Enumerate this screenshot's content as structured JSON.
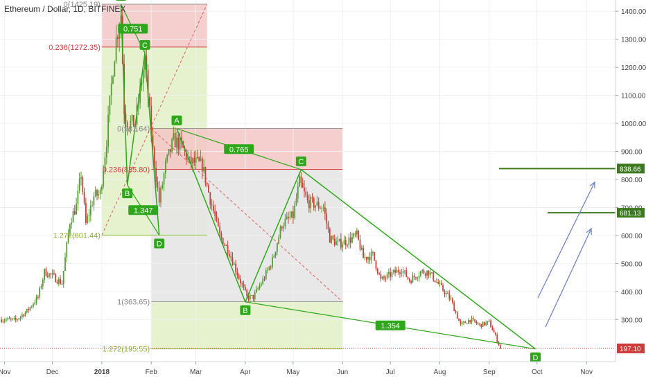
{
  "header": {
    "title": "Ethereum / Dollar, 1D, BITFINEX"
  },
  "colors": {
    "up": "#5a9a3a",
    "down": "#c8423a",
    "pattern": "#2ea81a",
    "fib_fill_red": "#f3c6c6",
    "fib_fill_green": "#e2f0c6",
    "fib_fill_gray": "#e6e6e6",
    "target_line": "#3d7a1f",
    "arrow": "#6f85c8",
    "price_line": "#d13a3a"
  },
  "chart_data": {
    "type": "candlestick",
    "title": "Ethereum / Dollar, 1D, BITFINEX",
    "x_ticks": [
      "Nov",
      "Dec",
      "2018",
      "Feb",
      "Mar",
      "Apr",
      "May",
      "Jun",
      "Jul",
      "Aug",
      "Sep",
      "Oct",
      "Nov"
    ],
    "x_tick_dates": [
      "2017-11-01",
      "2017-12-01",
      "2018-01-01",
      "2018-02-01",
      "2018-03-01",
      "2018-04-01",
      "2018-05-01",
      "2018-06-01",
      "2018-07-01",
      "2018-08-01",
      "2018-09-01",
      "2018-10-01",
      "2018-11-01"
    ],
    "y_ticks": [
      300,
      400,
      500,
      600,
      700,
      800,
      900,
      1000,
      1100,
      1200,
      1300,
      1400
    ],
    "y_range": [
      150,
      1440
    ],
    "price_path": [
      [
        "2017-10-30",
        300
      ],
      [
        "2017-11-08",
        298
      ],
      [
        "2017-11-15",
        330
      ],
      [
        "2017-11-22",
        380
      ],
      [
        "2017-11-26",
        470
      ],
      [
        "2017-12-01",
        455
      ],
      [
        "2017-12-07",
        430
      ],
      [
        "2017-12-12",
        650
      ],
      [
        "2017-12-16",
        705
      ],
      [
        "2017-12-19",
        820
      ],
      [
        "2017-12-22",
        640
      ],
      [
        "2017-12-27",
        740
      ],
      [
        "2017-12-31",
        750
      ],
      [
        "2018-01-04",
        940
      ],
      [
        "2018-01-08",
        1200
      ],
      [
        "2018-01-10",
        1300
      ],
      [
        "2018-01-13",
        1390
      ],
      [
        "2018-01-15",
        1050
      ],
      [
        "2018-01-17",
        1000
      ],
      [
        "2018-01-22",
        1000
      ],
      [
        "2018-01-28",
        1230
      ],
      [
        "2018-02-02",
        900
      ],
      [
        "2018-02-06",
        720
      ],
      [
        "2018-02-10",
        850
      ],
      [
        "2018-02-15",
        940
      ],
      [
        "2018-02-20",
        920
      ],
      [
        "2018-02-25",
        860
      ],
      [
        "2018-03-01",
        860
      ],
      [
        "2018-03-05",
        850
      ],
      [
        "2018-03-10",
        730
      ],
      [
        "2018-03-16",
        600
      ],
      [
        "2018-03-22",
        540
      ],
      [
        "2018-03-28",
        450
      ],
      [
        "2018-04-02",
        380
      ],
      [
        "2018-04-06",
        380
      ],
      [
        "2018-04-12",
        440
      ],
      [
        "2018-04-18",
        510
      ],
      [
        "2018-04-24",
        640
      ],
      [
        "2018-05-01",
        670
      ],
      [
        "2018-05-05",
        790
      ],
      [
        "2018-05-10",
        720
      ],
      [
        "2018-05-15",
        710
      ],
      [
        "2018-05-20",
        700
      ],
      [
        "2018-05-24",
        590
      ],
      [
        "2018-05-29",
        570
      ],
      [
        "2018-06-04",
        580
      ],
      [
        "2018-06-10",
        600
      ],
      [
        "2018-06-14",
        520
      ],
      [
        "2018-06-20",
        530
      ],
      [
        "2018-06-25",
        440
      ],
      [
        "2018-07-01",
        460
      ],
      [
        "2018-07-08",
        480
      ],
      [
        "2018-07-13",
        440
      ],
      [
        "2018-07-20",
        470
      ],
      [
        "2018-07-25",
        470
      ],
      [
        "2018-08-01",
        420
      ],
      [
        "2018-08-08",
        370
      ],
      [
        "2018-08-14",
        280
      ],
      [
        "2018-08-20",
        300
      ],
      [
        "2018-08-26",
        280
      ],
      [
        "2018-09-01",
        290
      ],
      [
        "2018-09-05",
        240
      ],
      [
        "2018-09-08",
        197
      ]
    ],
    "fib_levels": [
      {
        "label": "0(1425.19)",
        "price": 1425.19
      },
      {
        "label": "0.236(1272.35)",
        "price": 1272.35
      },
      {
        "label": "1.272(601.44)",
        "price": 601.44
      },
      {
        "label": "0(981.64)",
        "price": 981.64
      },
      {
        "label": "0.236(835.80)",
        "price": 835.8
      },
      {
        "label": "1(363.65)",
        "price": 363.65
      },
      {
        "label": "1.272(195.55)",
        "price": 195.55
      }
    ],
    "pattern_points": [
      {
        "label": "A",
        "date": "2018-01-13",
        "price": 1425
      },
      {
        "label": "B",
        "date": "2018-01-17",
        "price": 780
      },
      {
        "label": "C",
        "date": "2018-01-28",
        "price": 1250
      },
      {
        "label": "D",
        "date": "2018-02-06",
        "price": 601
      },
      {
        "label": "A",
        "date": "2018-02-17",
        "price": 981
      },
      {
        "label": "B",
        "date": "2018-04-01",
        "price": 363
      },
      {
        "label": "C",
        "date": "2018-05-06",
        "price": 835
      },
      {
        "label": "D",
        "date": "2018-09-30",
        "price": 195
      }
    ],
    "ratios": [
      {
        "label": "0.751"
      },
      {
        "label": "1.347"
      },
      {
        "label": "0.765"
      },
      {
        "label": "1.354"
      }
    ],
    "targets": [
      {
        "label": "838.66",
        "price": 838.66
      },
      {
        "label": "681.13",
        "price": 681.13
      }
    ],
    "last_price": {
      "label": "197.10",
      "price": 197.1
    }
  }
}
